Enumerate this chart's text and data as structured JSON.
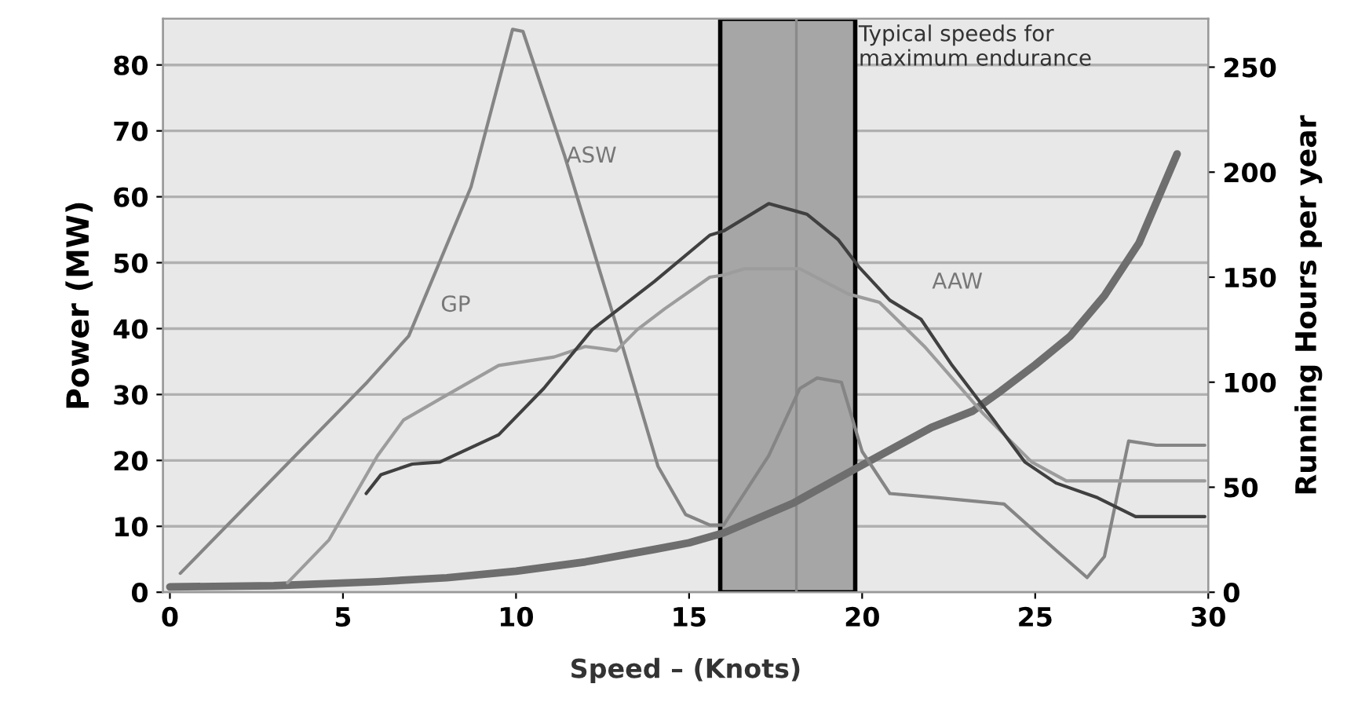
{
  "chart_data": {
    "type": "line",
    "xlabel": "Speed – (Knots)",
    "ylabel": "Power (MW)",
    "y2label": "Running Hours per year",
    "xlim": [
      -0.2,
      30
    ],
    "xticks": [
      0,
      5,
      10,
      15,
      20,
      25,
      30
    ],
    "ylim": [
      0,
      87
    ],
    "yticks": [
      0,
      10,
      20,
      30,
      40,
      50,
      60,
      70,
      80
    ],
    "y2lim": [
      0,
      273
    ],
    "y2ticks": [
      0,
      50,
      100,
      150,
      200,
      250
    ],
    "grid": "y",
    "marker": "none",
    "line_style": "solid",
    "series": [
      {
        "color": "#6e6e6e",
        "x": [
          0,
          3,
          6,
          8,
          10,
          12,
          14,
          15,
          16,
          18,
          20,
          22,
          23.2,
          24,
          25,
          26,
          27,
          28,
          29.1
        ],
        "values": [
          0.8,
          1,
          1.6,
          2.2,
          3.2,
          4.6,
          6.5,
          7.5,
          9,
          13.5,
          19.3,
          25,
          27.5,
          30.5,
          34.5,
          38.8,
          45,
          53,
          66.5
        ]
      },
      {
        "color": "#858585",
        "axis": "y2",
        "x": [
          0.3,
          5.7,
          6.9,
          8.7,
          9.9,
          10.2,
          11.4,
          12.9,
          14.1,
          14.9,
          15.6,
          16,
          17.3,
          18.2,
          18.7,
          19.4,
          20,
          20.8,
          22.2,
          24.1,
          25.6,
          26.5,
          27,
          27.7,
          28.5,
          29.9
        ],
        "values": [
          9,
          100,
          122,
          193,
          268,
          267,
          208,
          127,
          60,
          37,
          32,
          32,
          65,
          97,
          102,
          100,
          67,
          47,
          45,
          42,
          20,
          7,
          17,
          72,
          70,
          70
        ]
      },
      {
        "color": "#9c9c9c",
        "axis": "y2",
        "x": [
          3.4,
          4.6,
          6,
          6.75,
          7.8,
          9.5,
          11.1,
          12,
          12.9,
          13.5,
          14.3,
          15.6,
          16,
          16.6,
          18.2,
          19.6,
          20.5,
          21.8,
          23.5,
          24.9,
          25.9,
          29.9
        ],
        "values": [
          4.5,
          25,
          65,
          82,
          92,
          108,
          112,
          117,
          115,
          125,
          135,
          150,
          151,
          154,
          154,
          142,
          138,
          117,
          85,
          62,
          53,
          53
        ]
      },
      {
        "color": "#404040",
        "axis": "y2",
        "x": [
          5.67,
          6.1,
          7,
          7.8,
          9.5,
          10.8,
          12.2,
          14,
          15.6,
          16,
          17.3,
          18.4,
          19.3,
          19.9,
          20.8,
          21.7,
          22.6,
          23.8,
          24.7,
          25.6,
          26.8,
          27.9,
          29.9
        ],
        "values": [
          47,
          56,
          61,
          62,
          75,
          97,
          125,
          148,
          170,
          172,
          185,
          180,
          168,
          155,
          139,
          130,
          108,
          82,
          62,
          52,
          45,
          36,
          36
        ]
      }
    ],
    "bands": [
      {
        "axis": "x",
        "from": 15.9,
        "to": 19.8,
        "label": "Typical speeds for\nmaximum endurance",
        "color": "#a6a6a6"
      }
    ],
    "ref_lines": [
      {
        "axis": "x",
        "value": 18.1,
        "color": "#8a8a8a"
      }
    ],
    "annotations": [
      "ASW",
      "GP",
      "AAW"
    ]
  }
}
